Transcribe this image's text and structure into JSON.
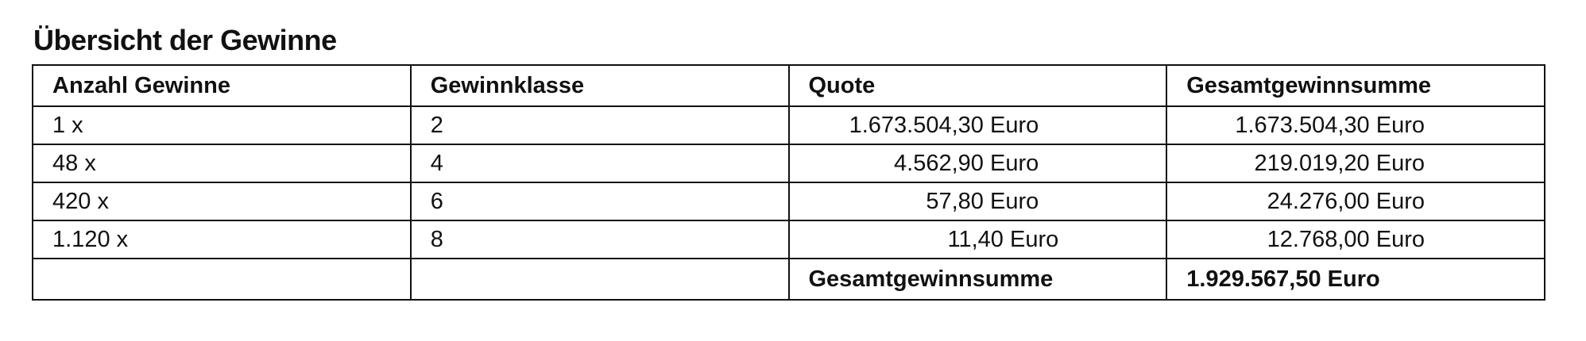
{
  "title": "Übersicht der Gewinne",
  "table": {
    "headers": [
      "Anzahl Gewinne",
      "Gewinnklasse",
      "Quote",
      "Gesamtgewinnsumme"
    ],
    "rows": [
      [
        "1 x",
        "2",
        "1.673.504,30 Euro",
        "1.673.504,30 Euro"
      ],
      [
        "48 x",
        "4",
        "4.562,90 Euro",
        "219.019,20 Euro"
      ],
      [
        "420 x",
        "6",
        "57,80 Euro",
        "24.276,00 Euro"
      ],
      [
        "1.120 x",
        "8",
        "11,40 Euro",
        "12.768,00 Euro"
      ]
    ],
    "total_label": "Gesamtgewinnsumme",
    "total_value": "1.929.567,50 Euro"
  }
}
